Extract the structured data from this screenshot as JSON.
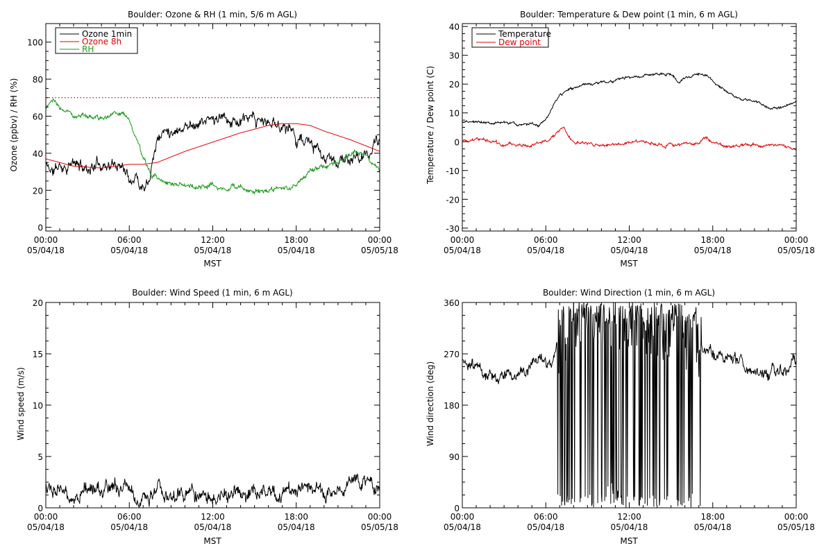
{
  "colors": {
    "axis": "#000000",
    "ozone_1min": "#000000",
    "ozone_8h": "#e00000",
    "rh": "#1a9a1a",
    "temperature": "#000000",
    "dew_point": "#e00000",
    "ref_line": "#e00000",
    "background": "#ffffff"
  },
  "x_tick_labels": [
    {
      "time": "00:00",
      "date": "05/04/18"
    },
    {
      "time": "06:00",
      "date": "05/04/18"
    },
    {
      "time": "12:00",
      "date": "05/04/18"
    },
    {
      "time": "18:00",
      "date": "05/04/18"
    },
    {
      "time": "00:00",
      "date": "05/05/18"
    }
  ],
  "chart_data": [
    {
      "id": "ozone_rh",
      "type": "line",
      "title": "Boulder: Ozone & RH (1 min, 5/6 m AGL)",
      "xlabel": "MST",
      "ylabel": "Ozone (ppbv) / RH (%)",
      "xlim": [
        0,
        24
      ],
      "ylim": [
        -2,
        110
      ],
      "yticks": [
        0,
        20,
        40,
        60,
        80,
        100
      ],
      "legend_position": "top-left",
      "reference_line": {
        "y": 70,
        "style": "dotted",
        "color": "#e00000"
      },
      "series": [
        {
          "name": "Ozone 1min",
          "color": "#000000",
          "noise": 3.5,
          "seed": 11,
          "x": [
            0,
            0.5,
            1,
            2,
            3,
            4,
            5,
            5.5,
            6,
            6.5,
            6.8,
            7.1,
            7.4,
            7.7,
            8,
            8.5,
            9,
            10,
            11,
            12,
            13,
            14,
            15,
            16,
            17,
            17.5,
            18,
            18.5,
            19,
            19.5,
            20,
            20.5,
            21,
            22,
            23,
            23.5,
            24
          ],
          "y": [
            34,
            30,
            33,
            34,
            32,
            35,
            33,
            35,
            28,
            29,
            23,
            25,
            28,
            40,
            48,
            52,
            53,
            55,
            57,
            58,
            58,
            57,
            57,
            56,
            55,
            54,
            49,
            47,
            45,
            40,
            37,
            35,
            36,
            36,
            38,
            43,
            48
          ]
        },
        {
          "name": "Ozone 8h",
          "color": "#e00000",
          "noise": 0,
          "seed": 0,
          "x": [
            0,
            2,
            4,
            6,
            7,
            8,
            10,
            12,
            14,
            16,
            17,
            18,
            19,
            20,
            22,
            24
          ],
          "y": [
            37,
            33,
            32,
            34,
            34,
            35,
            41,
            46,
            51,
            55,
            56,
            56,
            55,
            52,
            47,
            41
          ]
        },
        {
          "name": "RH",
          "color": "#1a9a1a",
          "noise": 1.5,
          "seed": 23,
          "x": [
            0,
            0.5,
            1,
            2,
            3,
            4,
            5,
            5.5,
            6,
            6.5,
            7,
            7.5,
            8,
            9,
            10,
            11,
            12,
            13,
            14,
            15,
            16,
            17,
            17.5,
            18,
            19,
            20,
            21,
            22,
            23,
            23.5,
            24
          ],
          "y": [
            65,
            68,
            64,
            61,
            60,
            58,
            63,
            62,
            58,
            48,
            36,
            30,
            26,
            24,
            23,
            22,
            22,
            21,
            21,
            20,
            20,
            20,
            21,
            24,
            30,
            33,
            36,
            40,
            41,
            35,
            30
          ]
        }
      ]
    },
    {
      "id": "temp_dew",
      "type": "line",
      "title": "Boulder: Temperature & Dew point (1 min, 6 m AGL)",
      "xlabel": "MST",
      "ylabel": "Temperature / Dew point (C)",
      "xlim": [
        0,
        24
      ],
      "ylim": [
        -31,
        41
      ],
      "yticks": [
        -30,
        -20,
        -10,
        0,
        10,
        20,
        30,
        40
      ],
      "legend_position": "top-left",
      "series": [
        {
          "name": "Temperature",
          "color": "#000000",
          "noise": 0.5,
          "seed": 37,
          "x": [
            0,
            1,
            2,
            3,
            4,
            5,
            5.5,
            6,
            6.5,
            7,
            7.5,
            8,
            9,
            10,
            11,
            12,
            13,
            14,
            15,
            15.5,
            16,
            17,
            17.5,
            18,
            19,
            20,
            21,
            22,
            22.5,
            23,
            23.5,
            24
          ],
          "y": [
            7,
            7,
            7,
            6.5,
            6,
            6.5,
            5.5,
            7,
            12,
            16,
            17.5,
            18.5,
            20,
            20.5,
            21.5,
            22.5,
            23,
            23.5,
            23.5,
            21,
            22,
            23.5,
            23,
            21,
            17,
            15,
            14,
            12,
            11.5,
            12,
            13,
            14
          ]
        },
        {
          "name": "Dew point",
          "color": "#e00000",
          "noise": 0.6,
          "seed": 41,
          "x": [
            0,
            1,
            2,
            3,
            4,
            5,
            6,
            6.5,
            7,
            7.3,
            7.6,
            8,
            9,
            10,
            11,
            12,
            13,
            14,
            15,
            16,
            17,
            17.3,
            17.6,
            18,
            19,
            20,
            21,
            22,
            23,
            23.5,
            24
          ],
          "y": [
            0,
            1,
            0,
            -1,
            -1,
            -1,
            0,
            1.5,
            3.5,
            4.5,
            2,
            0,
            -1,
            -1,
            -1,
            -0.5,
            0,
            -1,
            -1,
            -1,
            -1,
            1,
            1.5,
            -0.5,
            -1.5,
            -1.5,
            -1,
            -1,
            -1.5,
            -2.5,
            -3.5
          ]
        }
      ]
    },
    {
      "id": "wind_speed",
      "type": "line",
      "title": "Boulder: Wind Speed (1 min, 6 m AGL)",
      "xlabel": "MST",
      "ylabel": "Wind speed (m/s)",
      "xlim": [
        0,
        24
      ],
      "ylim": [
        0,
        20
      ],
      "yticks": [
        0,
        5,
        10,
        15,
        20
      ],
      "series": [
        {
          "name": "",
          "color": "#000000",
          "noise": 0.8,
          "seed": 53,
          "min": 0.05,
          "x": [
            0,
            1,
            2,
            3,
            4,
            5,
            6,
            6.5,
            7,
            7.5,
            8,
            9,
            10,
            11,
            12,
            13,
            14,
            15,
            16,
            17,
            18,
            19,
            20,
            21,
            22,
            23,
            23.5,
            24
          ],
          "y": [
            2.5,
            1.5,
            1.5,
            2,
            1.8,
            1.8,
            1.5,
            0.5,
            0.6,
            1.5,
            2,
            1.5,
            1.3,
            1.2,
            1.3,
            1.2,
            1.1,
            1.3,
            1.5,
            1.2,
            1.3,
            1.5,
            1.6,
            2,
            2.5,
            2.8,
            2.2,
            1.5
          ]
        }
      ]
    },
    {
      "id": "wind_dir",
      "type": "line",
      "title": "Boulder: Wind Direction (1 min, 6 m AGL)",
      "xlabel": "MST",
      "ylabel": "Wind direction (deg)",
      "xlim": [
        0,
        24
      ],
      "ylim": [
        0,
        360
      ],
      "yticks": [
        0,
        90,
        180,
        270,
        360
      ],
      "series": [
        {
          "name": "",
          "color": "#000000",
          "noise": 12,
          "seed": 67,
          "wrap": true,
          "wrap_from": 6.8,
          "wrap_to": 17.2,
          "x": [
            0,
            1,
            2,
            3,
            4,
            5,
            5.5,
            6,
            6.5,
            7,
            8,
            9,
            10,
            11,
            12,
            13,
            14,
            15,
            16,
            17,
            17.5,
            18,
            19,
            20,
            21,
            22,
            23,
            24
          ],
          "y": [
            255,
            240,
            235,
            225,
            235,
            240,
            250,
            255,
            260,
            300,
            330,
            340,
            350,
            345,
            340,
            330,
            320,
            310,
            300,
            290,
            280,
            270,
            255,
            250,
            245,
            235,
            245,
            255
          ]
        }
      ]
    }
  ]
}
